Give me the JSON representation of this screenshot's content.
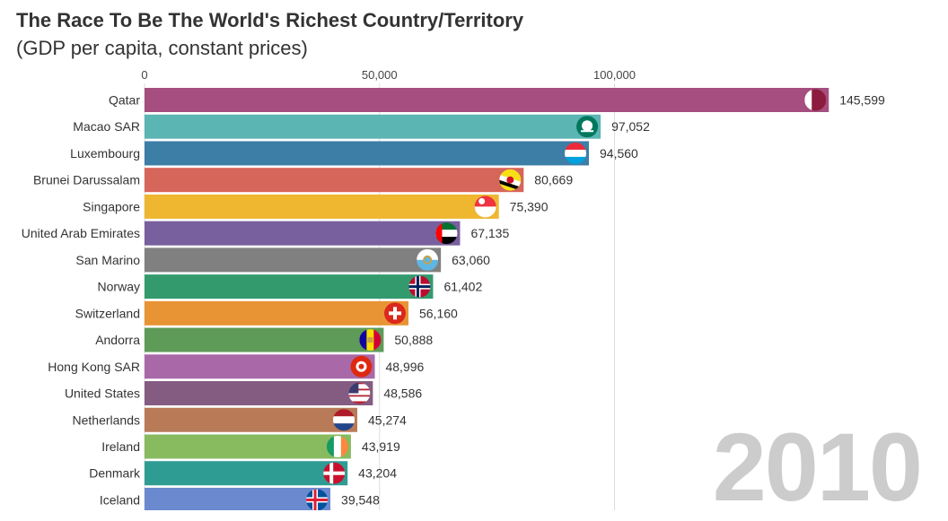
{
  "chart_data": {
    "type": "bar",
    "orientation": "horizontal",
    "title": "The Race To Be The World's Richest Country/Territory",
    "subtitle": "(GDP per capita, constant prices)",
    "year": "2010",
    "xlim": [
      0,
      145599
    ],
    "ticks": [
      0,
      50000,
      100000
    ],
    "tick_labels": [
      "0",
      "50,000",
      "100,000"
    ],
    "grid": true,
    "bars": [
      {
        "label": "Qatar",
        "value": 145599,
        "value_label": "145,599",
        "color": "#a54e7f",
        "flag": "qatar-flag-icon"
      },
      {
        "label": "Macao SAR",
        "value": 97052,
        "value_label": "97,052",
        "color": "#5bb5b3",
        "flag": "macao-flag-icon"
      },
      {
        "label": "Luxembourg",
        "value": 94560,
        "value_label": "94,560",
        "color": "#3d7ea6",
        "flag": "luxembourg-flag-icon"
      },
      {
        "label": "Brunei Darussalam",
        "value": 80669,
        "value_label": "80,669",
        "color": "#d6655a",
        "flag": "brunei-flag-icon"
      },
      {
        "label": "Singapore",
        "value": 75390,
        "value_label": "75,390",
        "color": "#efb630",
        "flag": "singapore-flag-icon"
      },
      {
        "label": "United Arab Emirates",
        "value": 67135,
        "value_label": "67,135",
        "color": "#785f9e",
        "flag": "uae-flag-icon"
      },
      {
        "label": "San Marino",
        "value": 63060,
        "value_label": "63,060",
        "color": "#808080",
        "flag": "san-marino-flag-icon"
      },
      {
        "label": "Norway",
        "value": 61402,
        "value_label": "61,402",
        "color": "#339a6e",
        "flag": "norway-flag-icon"
      },
      {
        "label": "Switzerland",
        "value": 56160,
        "value_label": "56,160",
        "color": "#e89434",
        "flag": "switzerland-flag-icon"
      },
      {
        "label": "Andorra",
        "value": 50888,
        "value_label": "50,888",
        "color": "#5e9a58",
        "flag": "andorra-flag-icon"
      },
      {
        "label": "Hong Kong SAR",
        "value": 48996,
        "value_label": "48,996",
        "color": "#a969a9",
        "flag": "hong-kong-flag-icon"
      },
      {
        "label": "United States",
        "value": 48586,
        "value_label": "48,586",
        "color": "#845c82",
        "flag": "usa-flag-icon"
      },
      {
        "label": "Netherlands",
        "value": 45274,
        "value_label": "45,274",
        "color": "#b97a58",
        "flag": "netherlands-flag-icon"
      },
      {
        "label": "Ireland",
        "value": 43919,
        "value_label": "43,919",
        "color": "#88ba60",
        "flag": "ireland-flag-icon"
      },
      {
        "label": "Denmark",
        "value": 43204,
        "value_label": "43,204",
        "color": "#2f9c93",
        "flag": "denmark-flag-icon"
      },
      {
        "label": "Iceland",
        "value": 39548,
        "value_label": "39,548",
        "color": "#6a89cf",
        "flag": "iceland-flag-icon"
      }
    ]
  }
}
